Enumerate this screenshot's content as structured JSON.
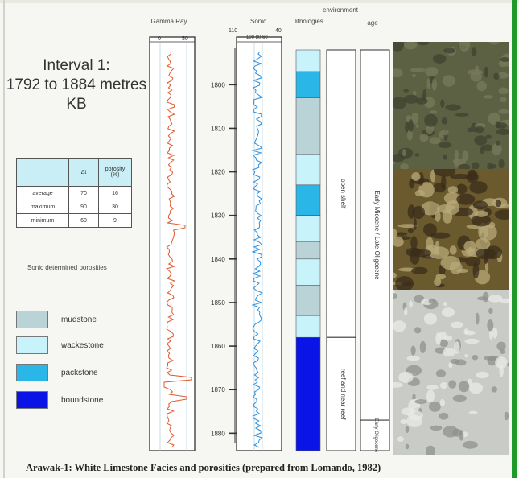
{
  "interval": {
    "line1": "Interval 1:",
    "line2": "1792 to 1884 metres",
    "line3": "KB"
  },
  "columns": {
    "gamma": {
      "title": "Gamma Ray",
      "scale_left": "0",
      "scale_right": "50"
    },
    "sonic": {
      "title": "Sonic",
      "scale_left": "110",
      "scale_right": "40",
      "scale_mid": "100 80 60"
    },
    "lithologies": {
      "title": "lithologies"
    },
    "environment": {
      "title": "environment"
    },
    "age": {
      "title": "age"
    }
  },
  "depth_ticks": [
    "1800",
    "1810",
    "1820",
    "1830",
    "1840",
    "1850",
    "1860",
    "1870",
    "1880"
  ],
  "stats_table": {
    "headers": [
      "",
      "Δt",
      "porosity (%)"
    ],
    "rows": [
      {
        "label": "average",
        "dt": "70",
        "porosity": "16"
      },
      {
        "label": "maximum",
        "dt": "90",
        "porosity": "30"
      },
      {
        "label": "minimum",
        "dt": "60",
        "porosity": "9"
      }
    ]
  },
  "stats_note": "Sonic determined porosities",
  "legend": [
    {
      "label": "mudstone",
      "color": "#b9d3d6"
    },
    {
      "label": "wackestone",
      "color": "#c9f3fb"
    },
    {
      "label": "packstone",
      "color": "#2ab7e8"
    },
    {
      "label": "boundstone",
      "color": "#0a14e6"
    }
  ],
  "lithology_column": [
    {
      "facies": "wackestone",
      "depth_from": 1792,
      "depth_to": 1797
    },
    {
      "facies": "packstone",
      "depth_from": 1797,
      "depth_to": 1803
    },
    {
      "facies": "mudstone",
      "depth_from": 1803,
      "depth_to": 1816
    },
    {
      "facies": "wackestone",
      "depth_from": 1816,
      "depth_to": 1823
    },
    {
      "facies": "packstone",
      "depth_from": 1823,
      "depth_to": 1830
    },
    {
      "facies": "wackestone",
      "depth_from": 1830,
      "depth_to": 1836
    },
    {
      "facies": "mudstone",
      "depth_from": 1836,
      "depth_to": 1840
    },
    {
      "facies": "wackestone",
      "depth_from": 1840,
      "depth_to": 1846
    },
    {
      "facies": "mudstone",
      "depth_from": 1846,
      "depth_to": 1853
    },
    {
      "facies": "wackestone",
      "depth_from": 1853,
      "depth_to": 1858
    },
    {
      "facies": "boundstone",
      "depth_from": 1858,
      "depth_to": 1884
    }
  ],
  "environment": [
    {
      "label": "open shelf",
      "depth_from": 1792,
      "depth_to": 1858
    },
    {
      "label": "reef and near reef",
      "depth_from": 1858,
      "depth_to": 1884
    }
  ],
  "age": [
    {
      "label": "Early Miocene / Late Oligocene",
      "depth_from": 1792,
      "depth_to": 1877
    },
    {
      "label": "Early Oligocene",
      "depth_from": 1877,
      "depth_to": 1884
    }
  ],
  "photos": [
    {
      "name": "core-photo-dark-limestone",
      "colors": [
        "#5d6143",
        "#3f4330",
        "#777a59"
      ]
    },
    {
      "name": "core-photo-brown-clasts",
      "colors": [
        "#6b5a2e",
        "#b8a978",
        "#3a2e1b"
      ]
    },
    {
      "name": "core-photo-white-limestone",
      "colors": [
        "#c9ccc6",
        "#8e928c",
        "#e9ebe7"
      ]
    }
  ],
  "caption": "Arawak-1: White Limestone Facies and porosities (prepared from Lomando, 1982)"
}
